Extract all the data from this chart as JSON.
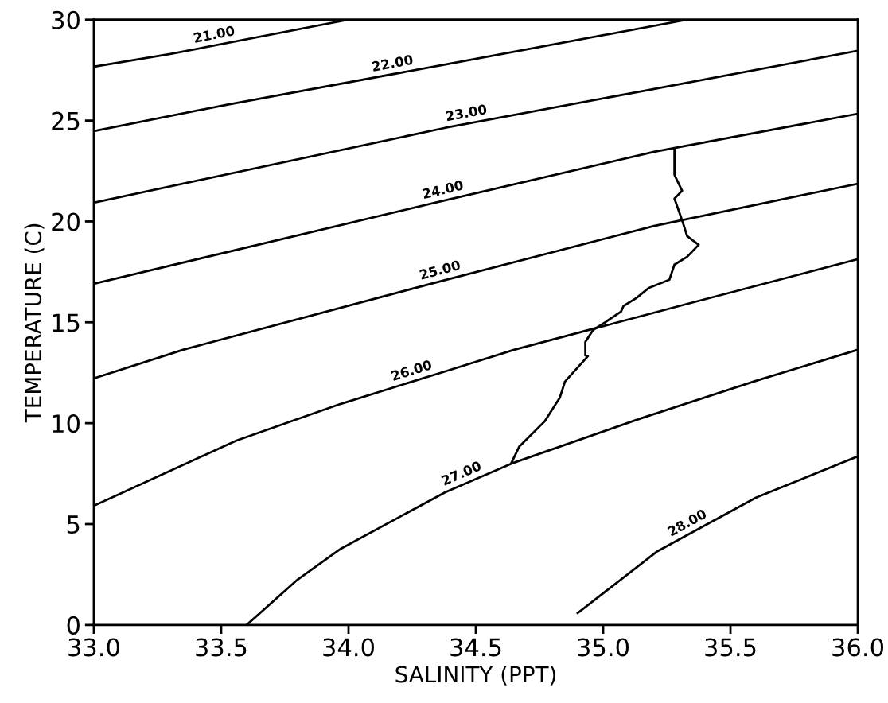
{
  "chart_data": {
    "type": "line",
    "xlabel": "SALINITY (PPT)",
    "ylabel": "TEMPERATURE (C)",
    "xlim": [
      33.0,
      36.0
    ],
    "ylim": [
      0,
      30
    ],
    "xticks": [
      {
        "value": 33.0,
        "label": "33.0"
      },
      {
        "value": 33.5,
        "label": "33.5"
      },
      {
        "value": 34.0,
        "label": "34.0"
      },
      {
        "value": 34.5,
        "label": "34.5"
      },
      {
        "value": 35.0,
        "label": "35.0"
      },
      {
        "value": 35.5,
        "label": "35.5"
      },
      {
        "value": 36.0,
        "label": "36.0"
      }
    ],
    "yticks": [
      0,
      5,
      10,
      15,
      20,
      25,
      30
    ],
    "grid": false,
    "marker": "none",
    "line_style": "solid",
    "series": [
      {
        "color": "#000000",
        "x": [
          33.0,
          33.3,
          34.0
        ],
        "values": [
          27.67,
          28.3,
          30.0
        ]
      },
      {
        "color": "#000000",
        "x": [
          33.0,
          33.52,
          34.38,
          35.33
        ],
        "values": [
          24.48,
          25.78,
          27.78,
          30.0
        ]
      },
      {
        "color": "#000000",
        "x": [
          33.0,
          34.38,
          35.15,
          36.0
        ],
        "values": [
          20.93,
          24.64,
          26.45,
          28.46
        ]
      },
      {
        "color": "#000000",
        "x": [
          33.0,
          34.38,
          35.2,
          36.0
        ],
        "values": [
          16.91,
          21.05,
          23.45,
          25.34
        ]
      },
      {
        "color": "#000000",
        "x": [
          33.0,
          33.35,
          34.38,
          35.2,
          36.0
        ],
        "values": [
          12.22,
          13.64,
          17.1,
          19.78,
          21.87
        ]
      },
      {
        "color": "#000000",
        "x": [
          33.0,
          33.56,
          33.97,
          34.38,
          34.65,
          35.32,
          36.0
        ],
        "values": [
          5.91,
          9.14,
          10.96,
          12.57,
          13.64,
          15.88,
          18.13
        ]
      },
      {
        "color": "#000000",
        "x": [
          33.6,
          33.8,
          33.97,
          34.38,
          34.64,
          35.15,
          35.6,
          36.0
        ],
        "values": [
          0.0,
          2.25,
          3.78,
          6.58,
          8.0,
          10.25,
          12.1,
          13.64
        ]
      },
      {
        "color": "#000000",
        "x": [
          34.9,
          35.21,
          35.6,
          36.0
        ],
        "values": [
          0.59,
          3.63,
          6.31,
          8.36
        ]
      },
      {
        "color": "#000000",
        "x": [
          35.28,
          35.28,
          35.31,
          35.28,
          35.31,
          35.33,
          35.375,
          35.33,
          35.28,
          35.26,
          35.18,
          35.13,
          35.08,
          35.07,
          35.01,
          34.96,
          34.93,
          34.93,
          34.94,
          34.85,
          34.83,
          34.77,
          34.67,
          34.64
        ],
        "values": [
          23.57,
          22.31,
          21.52,
          21.13,
          20.06,
          19.27,
          18.84,
          18.25,
          17.86,
          17.11,
          16.71,
          16.2,
          15.81,
          15.53,
          15.02,
          14.62,
          14.03,
          13.36,
          13.32,
          12.06,
          11.27,
          10.09,
          8.83,
          8.04
        ]
      }
    ],
    "annotations": [
      {
        "text": "21.00",
        "x": 33.48,
        "y": 28.74
      },
      {
        "text": "22.00",
        "x": 34.18,
        "y": 27.31
      },
      {
        "text": "23.00",
        "x": 34.47,
        "y": 24.85
      },
      {
        "text": "24.00",
        "x": 34.38,
        "y": 21.05
      },
      {
        "text": "25.00",
        "x": 34.37,
        "y": 17.07
      },
      {
        "text": "26.00",
        "x": 34.26,
        "y": 12.1
      },
      {
        "text": "27.00",
        "x": 34.46,
        "y": 7.02
      },
      {
        "text": "28.00",
        "x": 35.35,
        "y": 4.59
      }
    ]
  }
}
